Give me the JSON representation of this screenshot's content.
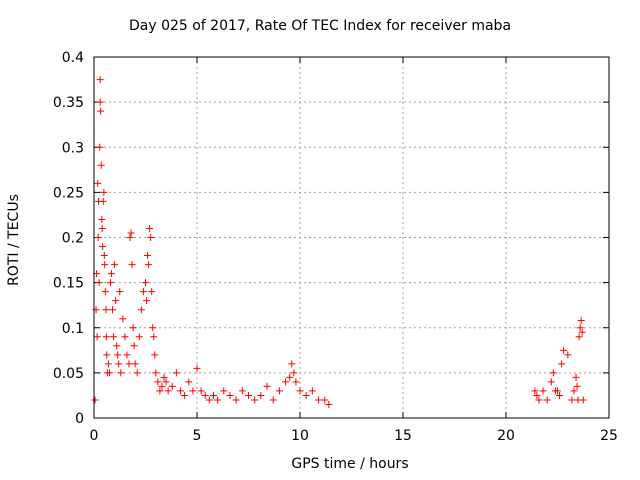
{
  "chart_data": {
    "type": "scatter",
    "title": "Day 025 of 2017, Rate Of TEC Index for receiver maba",
    "xlabel": "GPS time / hours",
    "ylabel": "ROTI / TECUs",
    "xlim": [
      0,
      25
    ],
    "ylim": [
      0,
      0.4
    ],
    "xticks": [
      "0",
      "5",
      "10",
      "15",
      "20",
      "25"
    ],
    "yticks": [
      "0",
      "0.05",
      "0.1",
      "0.15",
      "0.2",
      "0.25",
      "0.3",
      "0.35",
      "0.4"
    ],
    "grid": true,
    "marker": "+",
    "color": "#ff0000",
    "series": [
      {
        "name": "ROTI",
        "x": [
          0.05,
          0.1,
          0.12,
          0.15,
          0.18,
          0.2,
          0.22,
          0.25,
          0.28,
          0.3,
          0.3,
          0.32,
          0.35,
          0.38,
          0.4,
          0.42,
          0.45,
          0.48,
          0.5,
          0.52,
          0.55,
          0.58,
          0.6,
          0.62,
          0.65,
          0.7,
          0.75,
          0.8,
          0.85,
          0.9,
          0.95,
          1.0,
          1.05,
          1.1,
          1.15,
          1.2,
          1.25,
          1.3,
          1.4,
          1.5,
          1.6,
          1.7,
          1.75,
          1.8,
          1.85,
          1.9,
          1.95,
          2.0,
          2.1,
          2.2,
          2.3,
          2.4,
          2.5,
          2.55,
          2.6,
          2.65,
          2.7,
          2.75,
          2.8,
          2.85,
          2.9,
          2.95,
          3.0,
          3.1,
          3.2,
          3.3,
          3.4,
          3.5,
          3.6,
          3.8,
          4.0,
          4.2,
          4.4,
          4.6,
          4.8,
          5.0,
          5.2,
          5.4,
          5.6,
          5.8,
          6.0,
          6.3,
          6.6,
          6.9,
          7.2,
          7.5,
          7.8,
          8.1,
          8.4,
          8.7,
          9.0,
          9.3,
          9.5,
          9.6,
          9.7,
          9.8,
          10.0,
          10.3,
          10.6,
          10.9,
          11.2,
          11.4,
          21.4,
          21.5,
          21.6,
          21.8,
          22.0,
          22.2,
          22.3,
          22.4,
          22.5,
          22.6,
          22.7,
          22.8,
          23.0,
          23.2,
          23.3,
          23.4,
          23.45,
          23.5,
          23.55,
          23.6,
          23.65,
          23.7,
          23.75
        ],
        "y": [
          0.02,
          0.12,
          0.16,
          0.09,
          0.26,
          0.2,
          0.24,
          0.15,
          0.3,
          0.375,
          0.35,
          0.34,
          0.28,
          0.22,
          0.21,
          0.19,
          0.24,
          0.25,
          0.18,
          0.17,
          0.14,
          0.12,
          0.09,
          0.07,
          0.05,
          0.06,
          0.05,
          0.15,
          0.16,
          0.12,
          0.09,
          0.17,
          0.13,
          0.08,
          0.07,
          0.06,
          0.14,
          0.05,
          0.11,
          0.09,
          0.07,
          0.06,
          0.2,
          0.205,
          0.17,
          0.1,
          0.08,
          0.06,
          0.05,
          0.09,
          0.12,
          0.14,
          0.15,
          0.13,
          0.18,
          0.17,
          0.21,
          0.2,
          0.14,
          0.1,
          0.09,
          0.07,
          0.05,
          0.04,
          0.03,
          0.035,
          0.045,
          0.04,
          0.03,
          0.035,
          0.05,
          0.03,
          0.025,
          0.04,
          0.03,
          0.055,
          0.03,
          0.025,
          0.02,
          0.025,
          0.02,
          0.03,
          0.025,
          0.02,
          0.03,
          0.025,
          0.02,
          0.025,
          0.035,
          0.02,
          0.03,
          0.04,
          0.045,
          0.06,
          0.05,
          0.04,
          0.03,
          0.025,
          0.03,
          0.02,
          0.02,
          0.015,
          0.03,
          0.025,
          0.02,
          0.03,
          0.02,
          0.04,
          0.05,
          0.03,
          0.03,
          0.025,
          0.06,
          0.075,
          0.07,
          0.02,
          0.03,
          0.045,
          0.035,
          0.02,
          0.09,
          0.1,
          0.108,
          0.095,
          0.02
        ]
      }
    ]
  }
}
